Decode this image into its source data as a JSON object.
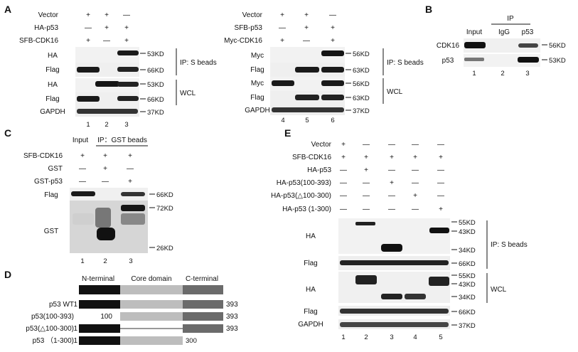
{
  "panel_A": {
    "letter": "A",
    "left": {
      "cond_labels": [
        "Vector",
        "HA-p53",
        "SFB-CDK16"
      ],
      "signs": [
        [
          "+",
          "+",
          "—"
        ],
        [
          "—",
          "+",
          "+"
        ],
        [
          "+",
          "—",
          "+"
        ]
      ],
      "ip_label": "IP: S beads",
      "wcl_label": "WCL",
      "row_labels": [
        "HA",
        "Flag",
        "HA",
        "Flag",
        "GAPDH"
      ],
      "mw": [
        "53KD",
        "66KD",
        "53KD",
        "66KD",
        "37KD"
      ],
      "lanes": [
        "1",
        "2",
        "3"
      ]
    },
    "right": {
      "cond_labels": [
        "Vector",
        "SFB-p53",
        "Myc-CDK16"
      ],
      "signs": [
        [
          "+",
          "+",
          "—"
        ],
        [
          "—",
          "+",
          "+"
        ],
        [
          "+",
          "—",
          "+"
        ]
      ],
      "ip_label": "IP: S beads",
      "wcl_label": "WCL",
      "row_labels": [
        "Myc",
        "Flag",
        "Myc",
        "Flag",
        "GAPDH"
      ],
      "mw": [
        "56KD",
        "63KD",
        "56KD",
        "63KD",
        "37KD"
      ],
      "lanes": [
        "4",
        "5",
        "6"
      ]
    }
  },
  "panel_B": {
    "letter": "B",
    "ip_header": "IP",
    "col_labels": [
      "Input",
      "IgG",
      "p53"
    ],
    "row_labels": [
      "CDK16",
      "p53"
    ],
    "mw": [
      "56KD",
      "53KD"
    ],
    "lanes": [
      "1",
      "2",
      "3"
    ]
  },
  "panel_C": {
    "letter": "C",
    "header_input": "Input",
    "header_ip": "IP：GST beads",
    "cond_labels": [
      "SFB-CDK16",
      "GST",
      "GST-p53"
    ],
    "signs": [
      [
        "+",
        "+",
        "+"
      ],
      [
        "—",
        "+",
        "—"
      ],
      [
        "—",
        "—",
        "+"
      ]
    ],
    "row_labels": [
      "Flag",
      "GST"
    ],
    "mw": [
      "66KD",
      "72KD",
      "26KD"
    ],
    "lanes": [
      "1",
      "2",
      "3"
    ]
  },
  "panel_D": {
    "letter": "D",
    "domains": [
      "N-terminal",
      "Core domain",
      "C-terminal"
    ],
    "constructs": [
      {
        "name": "p53 WT",
        "start": "1",
        "end": "393"
      },
      {
        "name": "p53(100-393)",
        "start": "100",
        "end": "393"
      },
      {
        "name": "p53(△100-300)",
        "start": "1",
        "end": "393"
      },
      {
        "name": "p53 （1-300)",
        "start": "1",
        "end": "300"
      }
    ]
  },
  "panel_E": {
    "letter": "E",
    "cond_labels": [
      "Vector",
      "SFB-CDK16",
      "HA-p53",
      "HA-p53(100-393)",
      "HA-p53(△100-300)",
      "HA-p53 (1-300)"
    ],
    "signs": [
      [
        "+",
        "—",
        "—",
        "—",
        "—"
      ],
      [
        "+",
        "+",
        "+",
        "+",
        "+"
      ],
      [
        "—",
        "+",
        "—",
        "—",
        "—"
      ],
      [
        "—",
        "—",
        "+",
        "—",
        "—"
      ],
      [
        "—",
        "—",
        "—",
        "+",
        "—"
      ],
      [
        "—",
        "—",
        "—",
        "—",
        "+"
      ]
    ],
    "ip_label": "IP: S beads",
    "wcl_label": "WCL",
    "row_labels": [
      "HA",
      "Flag",
      "HA",
      "Flag",
      "GAPDH"
    ],
    "mw_ip_ha": [
      "55KD",
      "43KD",
      "34KD"
    ],
    "mw_ip_flag": "66KD",
    "mw_wcl_ha": [
      "55KD",
      "43KD",
      "34KD"
    ],
    "mw_wcl_flag": "66KD",
    "mw_gapdh": "37KD",
    "lanes": [
      "1",
      "2",
      "3",
      "4",
      "5"
    ]
  }
}
